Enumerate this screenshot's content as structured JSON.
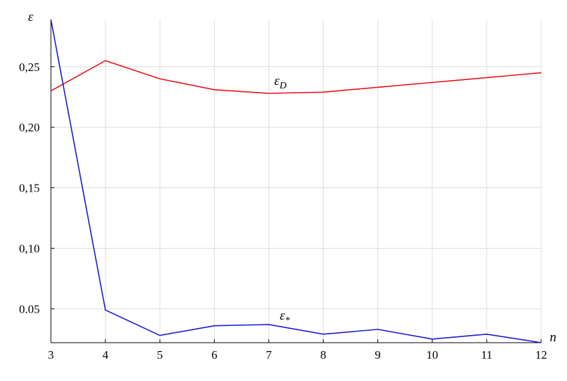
{
  "chart_data": {
    "type": "line",
    "x_label": "n",
    "y_label": "ε",
    "x": [
      3,
      4,
      5,
      6,
      7,
      8,
      9,
      10,
      11,
      12
    ],
    "series": [
      {
        "color": "#e8141b",
        "values": [
          0.23,
          0.255,
          0.24,
          0.231,
          0.228,
          0.229,
          0.233,
          0.237,
          0.241,
          0.245
        ]
      },
      {
        "color": "#1a1ad6",
        "values": [
          0.289,
          0.049,
          0.028,
          0.036,
          0.037,
          0.029,
          0.033,
          0.025,
          0.029,
          0.022
        ]
      }
    ],
    "annotations": [
      {
        "text": "ε",
        "subscript": "D",
        "x": 7.1,
        "y": 0.235
      },
      {
        "text": "ε",
        "subscript": "*",
        "x": 7.2,
        "y": 0.041
      }
    ],
    "xlim": [
      3,
      12
    ],
    "ylim": [
      0.022,
      0.289
    ],
    "xticks": [
      3,
      4,
      5,
      6,
      7,
      8,
      9,
      10,
      11,
      12
    ],
    "yticks": [
      {
        "value": 0.05,
        "label": "0.05"
      },
      {
        "value": 0.1,
        "label": "0,10"
      },
      {
        "value": 0.15,
        "label": "0,15"
      },
      {
        "value": 0.2,
        "label": "0,20"
      },
      {
        "value": 0.25,
        "label": "0,25"
      }
    ],
    "grid": true
  }
}
